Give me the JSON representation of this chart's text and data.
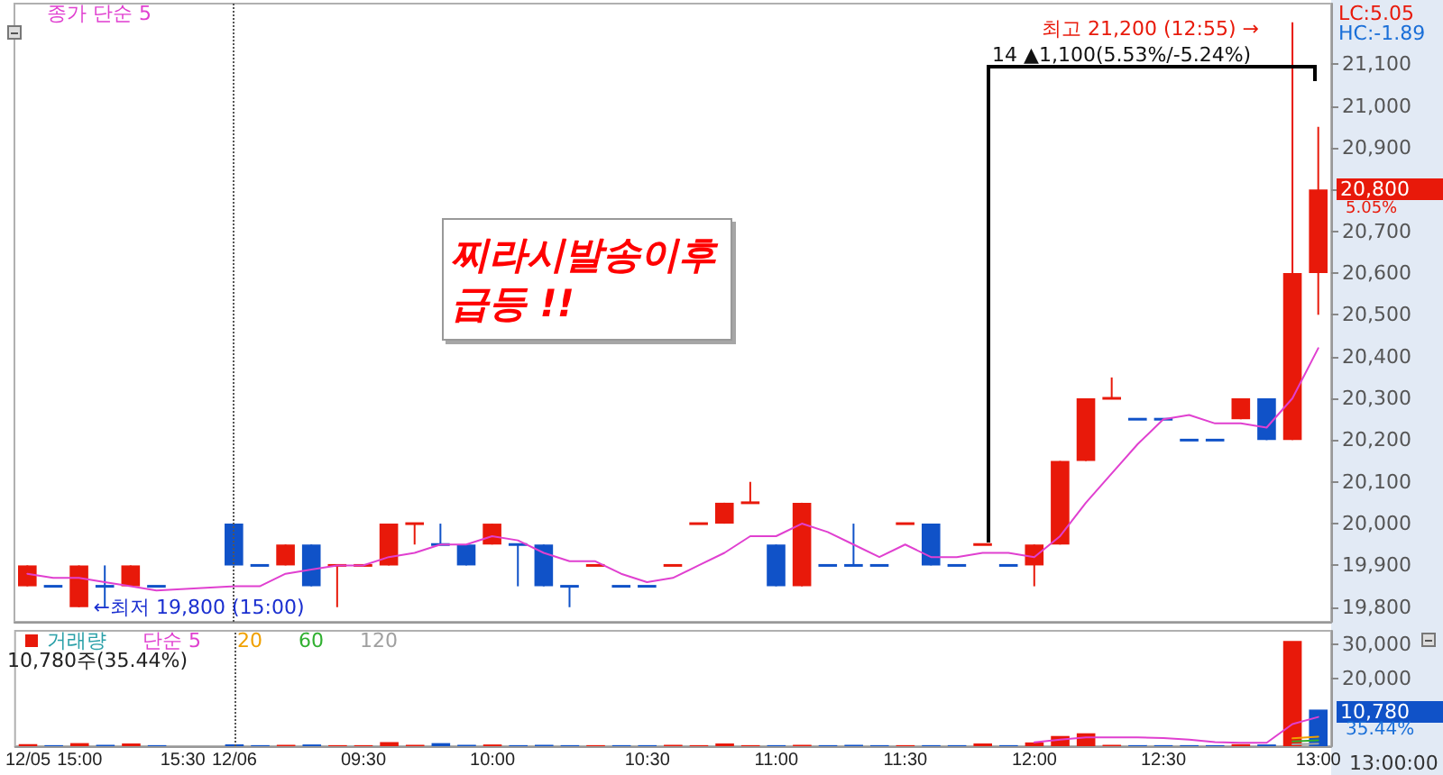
{
  "chart_data": [
    {
      "type": "candlestick",
      "categories": [
        "12/05",
        null,
        "15:00",
        null,
        null,
        null,
        "15:30",
        null,
        "12/06",
        null,
        null,
        null,
        null,
        "09:30",
        null,
        null,
        null,
        null,
        "10:00",
        null,
        null,
        null,
        null,
        null,
        "10:30",
        null,
        null,
        null,
        null,
        "11:00",
        null,
        null,
        null,
        null,
        "11:30",
        null,
        null,
        null,
        null,
        "12:00",
        null,
        null,
        null,
        null,
        "12:30",
        null,
        null,
        null,
        null,
        null,
        "13:00"
      ],
      "ohlc": [
        [
          19850,
          19900,
          19850,
          19900
        ],
        [
          19850,
          19850,
          19850,
          19850
        ],
        [
          19800,
          19900,
          19800,
          19900
        ],
        [
          19850,
          19900,
          19800,
          19850
        ],
        [
          19850,
          19900,
          19850,
          19900
        ],
        [
          19850,
          19850,
          19850,
          19850
        ],
        null,
        null,
        [
          20000,
          20000,
          19900,
          19900
        ],
        [
          19900,
          19900,
          19900,
          19900
        ],
        [
          19900,
          19950,
          19900,
          19950
        ],
        [
          19950,
          19950,
          19850,
          19850
        ],
        [
          19900,
          19900,
          19800,
          19900
        ],
        [
          19900,
          19900,
          19900,
          19900
        ],
        [
          19900,
          20000,
          19900,
          20000
        ],
        [
          20000,
          20000,
          19950,
          20000
        ],
        [
          19950,
          20000,
          19950,
          19950
        ],
        [
          19950,
          19950,
          19900,
          19900
        ],
        [
          19950,
          20000,
          19950,
          20000
        ],
        [
          19950,
          19950,
          19850,
          19950
        ],
        [
          19950,
          19950,
          19850,
          19850
        ],
        [
          19850,
          19850,
          19800,
          19850
        ],
        [
          19900,
          19900,
          19900,
          19900
        ],
        [
          19850,
          19850,
          19850,
          19850
        ],
        [
          19850,
          19850,
          19850,
          19850
        ],
        [
          19900,
          19900,
          19900,
          19900
        ],
        [
          20000,
          20000,
          20000,
          20000
        ],
        [
          20000,
          20050,
          20000,
          20050
        ],
        [
          20050,
          20100,
          20050,
          20050
        ],
        [
          19950,
          19950,
          19850,
          19850
        ],
        [
          19850,
          20050,
          19850,
          20050
        ],
        [
          19900,
          19900,
          19900,
          19900
        ],
        [
          19900,
          20000,
          19900,
          19900
        ],
        [
          19900,
          19900,
          19900,
          19900
        ],
        [
          20000,
          20000,
          20000,
          20000
        ],
        [
          20000,
          20000,
          19900,
          19900
        ],
        [
          19900,
          19900,
          19900,
          19900
        ],
        [
          19950,
          19950,
          19950,
          19950
        ],
        [
          19900,
          19900,
          19900,
          19900
        ],
        [
          19900,
          19950,
          19850,
          19950
        ],
        [
          19950,
          20150,
          19950,
          20150
        ],
        [
          20150,
          20300,
          20150,
          20300
        ],
        [
          20300,
          20350,
          20300,
          20300
        ],
        [
          20250,
          20250,
          20250,
          20250
        ],
        [
          20250,
          20250,
          20250,
          20250
        ],
        [
          20200,
          20200,
          20200,
          20200
        ],
        [
          20200,
          20200,
          20200,
          20200
        ],
        [
          20250,
          20300,
          20250,
          20300
        ],
        [
          20300,
          20300,
          20200,
          20200
        ],
        [
          20200,
          21200,
          20200,
          20600
        ],
        [
          20600,
          20950,
          20500,
          20800
        ]
      ],
      "colors": [
        "#e8190a",
        "#1052c8",
        "#e8190a",
        "#1052c8",
        "#e8190a",
        "#1052c8",
        null,
        null,
        "#1052c8",
        "#1052c8",
        "#e8190a",
        "#1052c8",
        "#e8190a",
        "#e8190a",
        "#e8190a",
        "#e8190a",
        "#1052c8",
        "#1052c8",
        "#e8190a",
        "#1052c8",
        "#1052c8",
        "#1052c8",
        "#e8190a",
        "#1052c8",
        "#1052c8",
        "#e8190a",
        "#e8190a",
        "#e8190a",
        "#e8190a",
        "#1052c8",
        "#e8190a",
        "#1052c8",
        "#1052c8",
        "#1052c8",
        "#e8190a",
        "#1052c8",
        "#1052c8",
        "#e8190a",
        "#1052c8",
        "#e8190a",
        "#e8190a",
        "#e8190a",
        "#e8190a",
        "#1052c8",
        "#1052c8",
        "#1052c8",
        "#1052c8",
        "#e8190a",
        "#1052c8",
        "#e8190a",
        "#e8190a"
      ],
      "series": [
        {
          "name": "종가 단순 5",
          "type": "line",
          "color": "#e040d0",
          "values": [
            19880,
            19870,
            19870,
            19860,
            19850,
            19840,
            null,
            null,
            19850,
            19850,
            19880,
            19890,
            19900,
            19900,
            19920,
            19930,
            19950,
            19950,
            19970,
            19960,
            19930,
            19910,
            19910,
            19880,
            19860,
            19870,
            19900,
            19930,
            19970,
            19970,
            20000,
            19980,
            19950,
            19920,
            19950,
            19920,
            19920,
            19930,
            19930,
            19920,
            19970,
            20050,
            20120,
            20190,
            20250,
            20260,
            20240,
            20240,
            20230,
            20300,
            20420
          ]
        }
      ],
      "ylim": [
        19765,
        21245
      ],
      "yticks": [
        {
          "value": 19800,
          "label": "19,800"
        },
        {
          "value": 19900,
          "label": "19,900"
        },
        {
          "value": 20000,
          "label": "20,000"
        },
        {
          "value": 20100,
          "label": "20,100"
        },
        {
          "value": 20200,
          "label": "20,200"
        },
        {
          "value": 20300,
          "label": "20,300"
        },
        {
          "value": 20400,
          "label": "20,400"
        },
        {
          "value": 20500,
          "label": "20,500"
        },
        {
          "value": 20600,
          "label": "20,600"
        },
        {
          "value": 20700,
          "label": "20,700"
        },
        {
          "value": 20800,
          "label": null
        },
        {
          "value": 20900,
          "label": "20,900"
        },
        {
          "value": 21000,
          "label": "21,000"
        },
        {
          "value": 21100,
          "label": "21,100"
        }
      ],
      "tick_labels": "y",
      "legend": "top left",
      "marker": "none",
      "ref_lines": [
        {
          "axis": "x",
          "value": "12/06",
          "color": "#555555",
          "line_style": "dotted"
        }
      ],
      "annotations": [
        "최고 21,200 (12:55) →",
        {
          "text": "←최저 19,800 (15:00)",
          "x": "15:00",
          "y": 19800
        },
        "14 ▲1,100(5.53%/-5.24%)",
        "찌라시발송이후\n급등 !!",
        "LC:5.05",
        "HC:-1.89",
        "20,800",
        "5.05%"
      ]
    },
    {
      "type": "bar",
      "categories": [
        "12/05",
        null,
        "15:00",
        null,
        null,
        null,
        "15:30",
        null,
        "12/06",
        null,
        null,
        null,
        null,
        "09:30",
        null,
        null,
        null,
        null,
        "10:00",
        null,
        null,
        null,
        null,
        null,
        "10:30",
        null,
        null,
        null,
        null,
        "11:00",
        null,
        null,
        null,
        null,
        "11:30",
        null,
        null,
        null,
        null,
        "12:00",
        null,
        null,
        null,
        null,
        "12:30",
        null,
        null,
        null,
        null,
        null,
        "13:00"
      ],
      "series": [
        {
          "name": "거래량",
          "colors": [
            "#e8190a",
            "#1052c8",
            "#e8190a",
            "#1052c8",
            "#e8190a",
            "#1052c8",
            null,
            null,
            "#1052c8",
            "#1052c8",
            "#e8190a",
            "#1052c8",
            "#e8190a",
            "#e8190a",
            "#e8190a",
            "#e8190a",
            "#1052c8",
            "#1052c8",
            "#e8190a",
            "#1052c8",
            "#1052c8",
            "#1052c8",
            "#e8190a",
            "#1052c8",
            "#1052c8",
            "#e8190a",
            "#e8190a",
            "#e8190a",
            "#e8190a",
            "#1052c8",
            "#e8190a",
            "#1052c8",
            "#1052c8",
            "#1052c8",
            "#e8190a",
            "#1052c8",
            "#1052c8",
            "#e8190a",
            "#1052c8",
            "#e8190a",
            "#e8190a",
            "#e8190a",
            "#e8190a",
            "#1052c8",
            "#1052c8",
            "#1052c8",
            "#1052c8",
            "#e8190a",
            "#1052c8",
            "#e8190a",
            "#1052c8"
          ],
          "values": [
            600,
            300,
            900,
            400,
            800,
            300,
            null,
            null,
            500,
            300,
            400,
            500,
            300,
            300,
            1200,
            400,
            900,
            400,
            500,
            300,
            400,
            300,
            300,
            300,
            300,
            400,
            300,
            800,
            300,
            300,
            400,
            300,
            400,
            300,
            300,
            300,
            300,
            800,
            300,
            1100,
            3000,
            3800,
            400,
            300,
            300,
            300,
            300,
            600,
            500,
            31000,
            10780
          ]
        },
        {
          "name": "단순 5",
          "type": "line",
          "color": "#e040d0",
          "values": [
            null,
            null,
            null,
            null,
            null,
            null,
            null,
            null,
            null,
            null,
            null,
            null,
            null,
            null,
            null,
            null,
            null,
            null,
            null,
            null,
            null,
            null,
            null,
            null,
            null,
            null,
            null,
            null,
            null,
            null,
            null,
            null,
            null,
            null,
            null,
            null,
            null,
            null,
            null,
            1100,
            1900,
            2600,
            2600,
            2600,
            2400,
            1900,
            1200,
            1000,
            1000,
            6500,
            8600
          ]
        },
        {
          "name": "20",
          "type": "line",
          "color": "#f0a000",
          "values": [
            null,
            null,
            null,
            null,
            null,
            null,
            null,
            null,
            null,
            null,
            null,
            null,
            null,
            null,
            null,
            null,
            null,
            null,
            null,
            null,
            null,
            null,
            null,
            null,
            null,
            null,
            null,
            null,
            null,
            null,
            null,
            null,
            null,
            null,
            null,
            null,
            null,
            null,
            null,
            null,
            null,
            null,
            null,
            null,
            null,
            null,
            null,
            null,
            null,
            2300,
            2800
          ]
        },
        {
          "name": "60",
          "type": "line",
          "color": "#30b030",
          "values": [
            null,
            null,
            null,
            null,
            null,
            null,
            null,
            null,
            null,
            null,
            null,
            null,
            null,
            null,
            null,
            null,
            null,
            null,
            null,
            null,
            null,
            null,
            null,
            null,
            null,
            null,
            null,
            null,
            null,
            null,
            null,
            null,
            null,
            null,
            null,
            null,
            null,
            null,
            null,
            null,
            null,
            null,
            null,
            null,
            null,
            null,
            null,
            null,
            null,
            1400,
            1700
          ]
        },
        {
          "name": "120",
          "type": "line",
          "color": "#a0a0a0",
          "values": [
            null,
            null,
            null,
            null,
            null,
            null,
            null,
            null,
            null,
            null,
            null,
            null,
            null,
            null,
            null,
            null,
            null,
            null,
            null,
            null,
            null,
            null,
            null,
            null,
            null,
            null,
            null,
            null,
            null,
            null,
            null,
            null,
            null,
            null,
            null,
            null,
            null,
            null,
            null,
            null,
            null,
            null,
            null,
            null,
            null,
            null,
            null,
            null,
            null,
            500,
            700
          ]
        }
      ],
      "ylim": [
        0,
        34000
      ],
      "yticks": [
        {
          "value": 20000,
          "label": "20,000"
        },
        {
          "value": 30000,
          "label": "30,000"
        }
      ],
      "legend": "top left",
      "marker": "none",
      "ref_lines": [
        {
          "axis": "x",
          "value": "12/06",
          "color": "#555555",
          "line_style": "dotted"
        }
      ],
      "annotations": [
        "10,780주(35.44%)",
        "10,780",
        "35.44%",
        "13:00:00"
      ]
    }
  ]
}
